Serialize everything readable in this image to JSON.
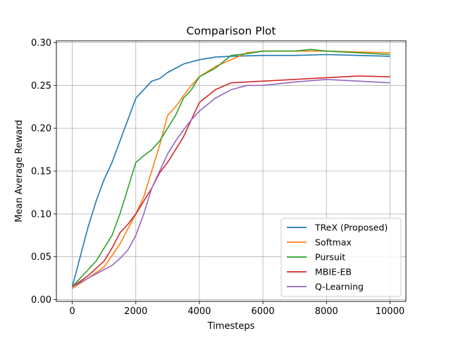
{
  "chart_data": {
    "type": "line",
    "title": "Comparison Plot",
    "xlabel": "Timesteps",
    "ylabel": "Mean Average Reward",
    "xlim": [
      -500,
      10500
    ],
    "ylim": [
      -0.002,
      0.302
    ],
    "xticks": [
      0,
      2000,
      4000,
      6000,
      8000,
      10000
    ],
    "yticks": [
      0.0,
      0.05,
      0.1,
      0.15,
      0.2,
      0.25,
      0.3
    ],
    "xtick_labels": [
      "0",
      "2000",
      "4000",
      "6000",
      "8000",
      "10000"
    ],
    "ytick_labels": [
      "0.00",
      "0.05",
      "0.10",
      "0.15",
      "0.20",
      "0.25",
      "0.30"
    ],
    "grid": true,
    "legend_position": "lower-right",
    "series": [
      {
        "name": "TReX (Proposed)",
        "color": "#1f77b4",
        "x": [
          0,
          250,
          500,
          750,
          1000,
          1250,
          1500,
          1750,
          2000,
          2250,
          2500,
          2750,
          3000,
          3500,
          4000,
          4500,
          5000,
          6000,
          7000,
          8000,
          9000,
          10000
        ],
        "y": [
          0.015,
          0.05,
          0.085,
          0.115,
          0.14,
          0.16,
          0.185,
          0.21,
          0.235,
          0.245,
          0.255,
          0.258,
          0.265,
          0.275,
          0.28,
          0.283,
          0.284,
          0.285,
          0.285,
          0.286,
          0.285,
          0.284
        ]
      },
      {
        "name": "Softmax",
        "color": "#ff7f0e",
        "x": [
          0,
          500,
          1000,
          1500,
          2000,
          2250,
          2500,
          2750,
          3000,
          3250,
          3500,
          3750,
          4000,
          4500,
          5000,
          5500,
          6000,
          7000,
          8000,
          9000,
          10000
        ],
        "y": [
          0.013,
          0.025,
          0.038,
          0.065,
          0.1,
          0.12,
          0.15,
          0.18,
          0.215,
          0.225,
          0.238,
          0.25,
          0.26,
          0.272,
          0.28,
          0.288,
          0.29,
          0.29,
          0.29,
          0.289,
          0.288
        ]
      },
      {
        "name": "Pursuit",
        "color": "#2ca02c",
        "x": [
          0,
          250,
          500,
          750,
          1000,
          1250,
          1500,
          1750,
          2000,
          2250,
          2500,
          2750,
          3000,
          3250,
          3500,
          3750,
          4000,
          4500,
          5000,
          5500,
          6000,
          7000,
          7500,
          8000,
          9000,
          10000
        ],
        "y": [
          0.015,
          0.025,
          0.035,
          0.045,
          0.06,
          0.075,
          0.1,
          0.13,
          0.16,
          0.168,
          0.175,
          0.185,
          0.2,
          0.215,
          0.235,
          0.245,
          0.26,
          0.27,
          0.285,
          0.287,
          0.29,
          0.29,
          0.292,
          0.29,
          0.288,
          0.286
        ]
      },
      {
        "name": "MBIE-EB",
        "color": "#d62728",
        "x": [
          0,
          500,
          1000,
          1250,
          1500,
          1750,
          2000,
          2250,
          2500,
          2750,
          3000,
          3250,
          3500,
          3750,
          4000,
          4500,
          5000,
          5500,
          6000,
          7000,
          8000,
          9000,
          10000
        ],
        "y": [
          0.015,
          0.028,
          0.045,
          0.06,
          0.078,
          0.088,
          0.1,
          0.115,
          0.13,
          0.148,
          0.16,
          0.175,
          0.19,
          0.21,
          0.23,
          0.245,
          0.253,
          0.254,
          0.255,
          0.257,
          0.259,
          0.261,
          0.26
        ]
      },
      {
        "name": "Q-Learning",
        "color": "#9467bd",
        "x": [
          0,
          500,
          1000,
          1250,
          1500,
          1750,
          2000,
          2250,
          2500,
          2750,
          3000,
          3250,
          3500,
          3750,
          4000,
          4500,
          5000,
          5500,
          6000,
          7000,
          8000,
          9000,
          10000
        ],
        "y": [
          0.015,
          0.025,
          0.035,
          0.04,
          0.048,
          0.058,
          0.075,
          0.1,
          0.13,
          0.15,
          0.17,
          0.185,
          0.198,
          0.21,
          0.22,
          0.235,
          0.245,
          0.25,
          0.25,
          0.254,
          0.257,
          0.255,
          0.253
        ]
      }
    ]
  }
}
